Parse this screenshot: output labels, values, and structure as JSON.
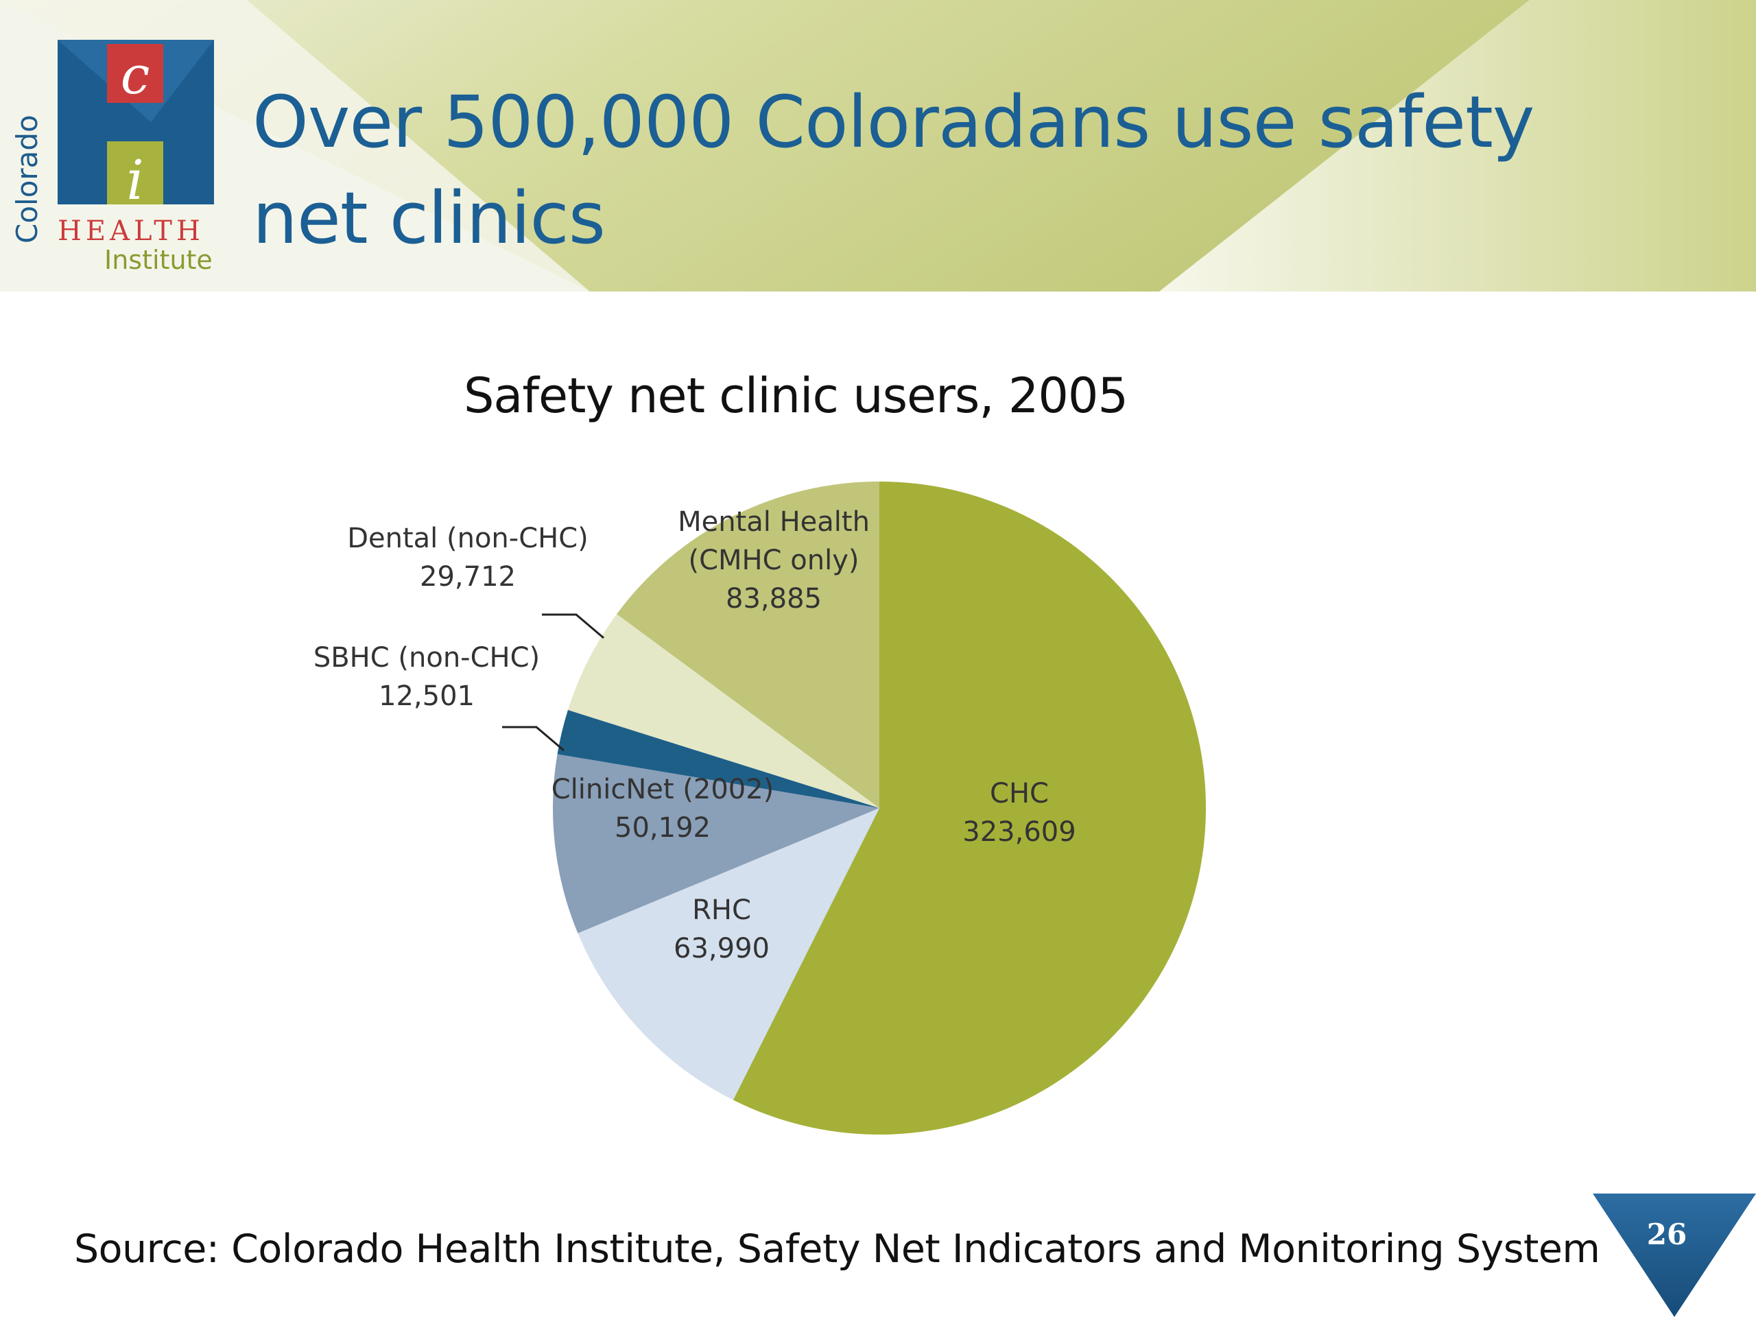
{
  "slide": {
    "title": "Over 500,000 Coloradans use safety net clinics",
    "source": "Source: Colorado Health Institute, Safety Net Indicators and Monitoring System",
    "page_number": "26"
  },
  "logo": {
    "letter_top": "c",
    "letter_bottom": "i",
    "word_vertical": "Colorado",
    "word_health": "HEALTH",
    "word_institute": "Institute"
  },
  "colors": {
    "title_blue": "#1b5f94",
    "band_green": "#c3ca7e",
    "logo_red": "#cc3b3b",
    "logo_blue": "#1d5c8e"
  },
  "chart_data": {
    "type": "pie",
    "title": "Safety net clinic users, 2005",
    "slices": [
      {
        "label": "CHC",
        "value": 323609,
        "display": "323,609",
        "color": "#a5b038"
      },
      {
        "label": "RHC",
        "value": 63990,
        "display": "63,990",
        "color": "#d5e0ee"
      },
      {
        "label": "ClinicNet (2002)",
        "value": 50192,
        "display": "50,192",
        "color": "#8a9fb8"
      },
      {
        "label": "SBHC (non-CHC)",
        "value": 12501,
        "display": "12,501",
        "color": "#1e5f88"
      },
      {
        "label": "Dental (non-CHC)",
        "value": 29712,
        "display": "29,712",
        "color": "#e4e8c7"
      },
      {
        "label": "Mental Health (CMHC only)",
        "label_lines": [
          "Mental Health",
          "(CMHC only)"
        ],
        "value": 83885,
        "display": "83,885",
        "color": "#c0c57a"
      }
    ],
    "start": "12 o'clock",
    "direction": "clockwise"
  }
}
